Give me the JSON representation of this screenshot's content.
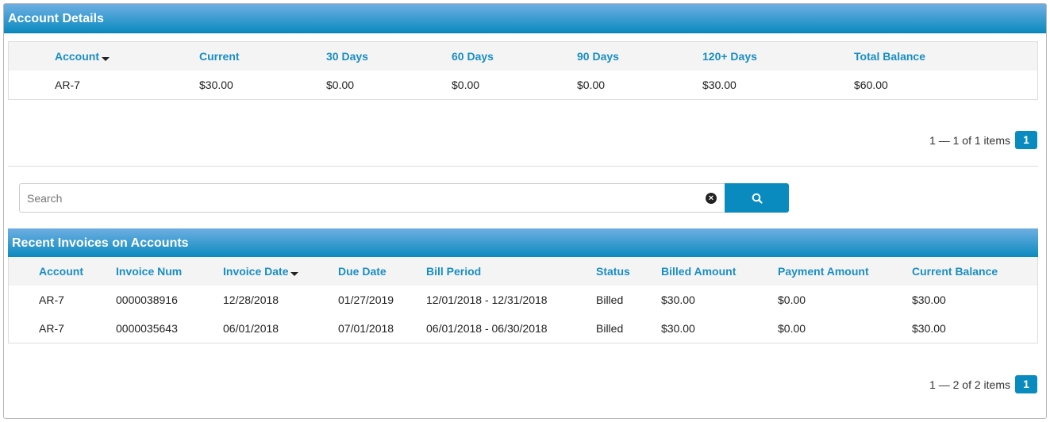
{
  "account_details": {
    "title": "Account Details",
    "columns": [
      "Account",
      "Current",
      "30 Days",
      "60 Days",
      "90 Days",
      "120+ Days",
      "Total Balance"
    ],
    "rows": [
      [
        "AR-7",
        "$30.00",
        "$0.00",
        "$0.00",
        "$0.00",
        "$30.00",
        "$60.00"
      ]
    ],
    "pager": {
      "summary": "1 — 1 of 1 items",
      "page": "1"
    }
  },
  "search": {
    "placeholder": "Search",
    "clear_icon": "times-circle-icon",
    "button_icon": "search-icon"
  },
  "recent_invoices": {
    "title": "Recent Invoices on Accounts",
    "columns": [
      "Account",
      "Invoice Num",
      "Invoice Date",
      "Due Date",
      "Bill Period",
      "Status",
      "Billed Amount",
      "Payment Amount",
      "Current Balance"
    ],
    "rows": [
      [
        "AR-7",
        "0000038916",
        "12/28/2018",
        "01/27/2019",
        "12/01/2018 - 12/31/2018",
        "Billed",
        "$30.00",
        "$0.00",
        "$30.00"
      ],
      [
        "AR-7",
        "0000035643",
        "06/01/2018",
        "07/01/2018",
        "06/01/2018 - 06/30/2018",
        "Billed",
        "$30.00",
        "$0.00",
        "$30.00"
      ]
    ],
    "pager": {
      "summary": "1 — 2 of 2 items",
      "page": "1"
    }
  },
  "colors": {
    "accent": "#0a8bbf",
    "header_text": "#1a8ec4"
  }
}
